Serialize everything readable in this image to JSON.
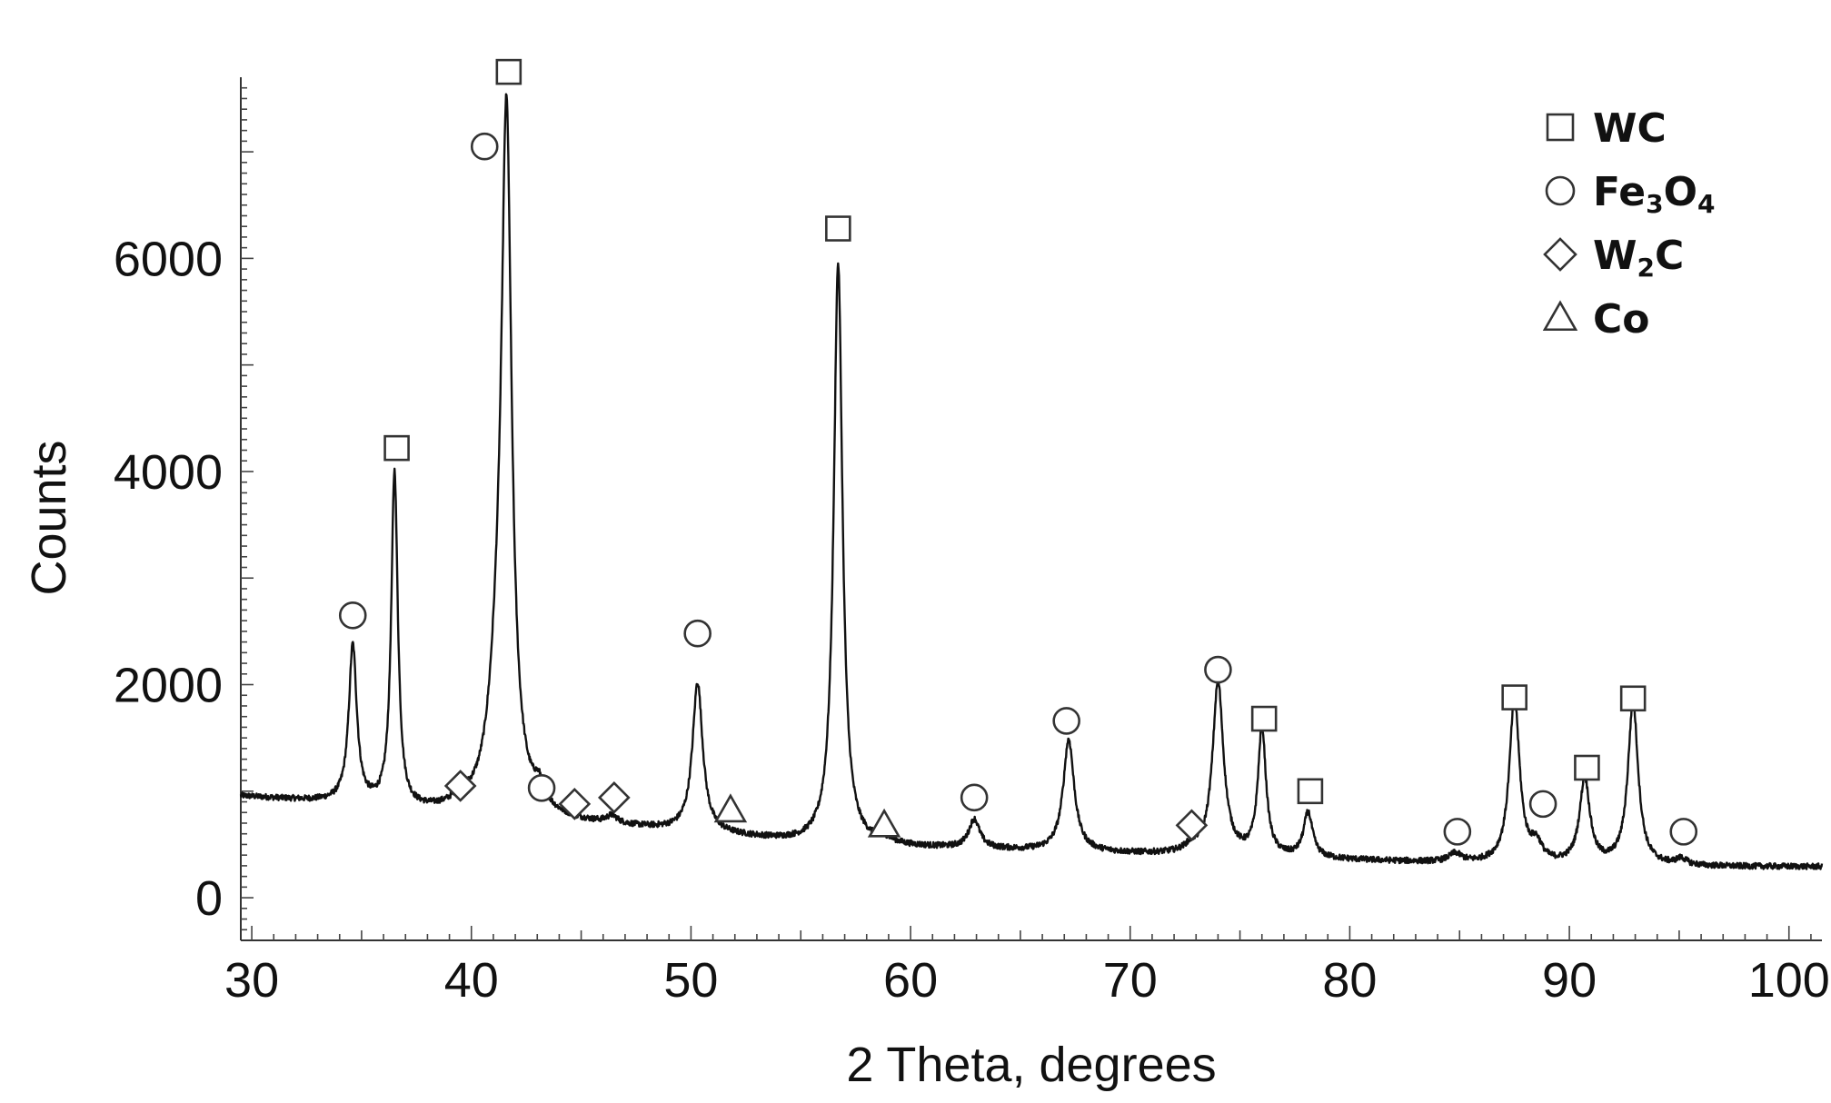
{
  "chart_data": {
    "type": "line",
    "xlabel": "2 Theta, degrees",
    "ylabel": "Counts",
    "xlim": [
      29.5,
      101.5
    ],
    "ylim": [
      -400,
      7700
    ],
    "x_ticks": [
      30,
      40,
      50,
      60,
      70,
      80,
      90,
      100
    ],
    "y_ticks": [
      0,
      2000,
      4000,
      6000
    ],
    "grid": false,
    "legend_position": "top-right",
    "background": {
      "points": [
        [
          29.5,
          950
        ],
        [
          34,
          880
        ],
        [
          37,
          800
        ],
        [
          40,
          790
        ],
        [
          45,
          690
        ],
        [
          50,
          610
        ],
        [
          55,
          510
        ],
        [
          60,
          470
        ],
        [
          65,
          440
        ],
        [
          70,
          410
        ],
        [
          75,
          380
        ],
        [
          80,
          350
        ],
        [
          85,
          320
        ],
        [
          90,
          300
        ],
        [
          95,
          290
        ],
        [
          101.5,
          290
        ]
      ]
    },
    "peaks": [
      {
        "x": 34.6,
        "height": 1480,
        "width": 0.22,
        "phase": "Fe3O4"
      },
      {
        "x": 36.5,
        "height": 3150,
        "width": 0.18,
        "phase": "WC"
      },
      {
        "x": 39.5,
        "height": 90,
        "width": 0.3,
        "phase": "W2C"
      },
      {
        "x": 41.2,
        "height": 900,
        "width": 0.5,
        "phase": "Fe3O4"
      },
      {
        "x": 41.6,
        "height": 6200,
        "width": 0.28,
        "phase": "WC"
      },
      {
        "x": 43.1,
        "height": 180,
        "width": 0.3,
        "phase": "Fe3O4"
      },
      {
        "x": 46.4,
        "height": 70,
        "width": 0.3,
        "phase": "W2C"
      },
      {
        "x": 50.3,
        "height": 1400,
        "width": 0.28,
        "phase": "Fe3O4"
      },
      {
        "x": 56.7,
        "height": 5450,
        "width": 0.24,
        "phase": "WC"
      },
      {
        "x": 58.9,
        "height": 40,
        "width": 0.4,
        "phase": "Co"
      },
      {
        "x": 62.9,
        "height": 270,
        "width": 0.3,
        "phase": "Fe3O4"
      },
      {
        "x": 67.2,
        "height": 1050,
        "width": 0.3,
        "phase": "Fe3O4"
      },
      {
        "x": 72.8,
        "height": 60,
        "width": 0.4,
        "phase": "W2C"
      },
      {
        "x": 74.0,
        "height": 1620,
        "width": 0.3,
        "phase": "Fe3O4"
      },
      {
        "x": 76.0,
        "height": 1200,
        "width": 0.22,
        "phase": "WC"
      },
      {
        "x": 78.1,
        "height": 420,
        "width": 0.25,
        "phase": "WC"
      },
      {
        "x": 84.8,
        "height": 80,
        "width": 0.35,
        "phase": "Fe3O4"
      },
      {
        "x": 87.5,
        "height": 1550,
        "width": 0.28,
        "phase": "WC"
      },
      {
        "x": 88.5,
        "height": 160,
        "width": 0.3,
        "phase": "Fe3O4"
      },
      {
        "x": 90.7,
        "height": 800,
        "width": 0.28,
        "phase": "WC"
      },
      {
        "x": 92.9,
        "height": 1530,
        "width": 0.28,
        "phase": "WC"
      },
      {
        "x": 95.1,
        "height": 60,
        "width": 0.3,
        "phase": "Fe3O4"
      }
    ],
    "markers": [
      {
        "x": 34.6,
        "y": 2650,
        "symbol": "circle"
      },
      {
        "x": 36.6,
        "y": 4220,
        "symbol": "square"
      },
      {
        "x": 39.5,
        "y": 1050,
        "symbol": "diamond"
      },
      {
        "x": 40.6,
        "y": 7050,
        "symbol": "circle"
      },
      {
        "x": 41.7,
        "y": 7750,
        "symbol": "square"
      },
      {
        "x": 43.2,
        "y": 1030,
        "symbol": "circle"
      },
      {
        "x": 44.7,
        "y": 880,
        "symbol": "diamond"
      },
      {
        "x": 46.5,
        "y": 940,
        "symbol": "diamond"
      },
      {
        "x": 50.3,
        "y": 2480,
        "symbol": "circle"
      },
      {
        "x": 51.8,
        "y": 820,
        "symbol": "triangle"
      },
      {
        "x": 56.7,
        "y": 6280,
        "symbol": "square"
      },
      {
        "x": 58.8,
        "y": 680,
        "symbol": "triangle"
      },
      {
        "x": 62.9,
        "y": 940,
        "symbol": "circle"
      },
      {
        "x": 67.1,
        "y": 1660,
        "symbol": "circle"
      },
      {
        "x": 72.8,
        "y": 680,
        "symbol": "diamond"
      },
      {
        "x": 74.0,
        "y": 2140,
        "symbol": "circle"
      },
      {
        "x": 76.1,
        "y": 1680,
        "symbol": "square"
      },
      {
        "x": 78.2,
        "y": 1000,
        "symbol": "square"
      },
      {
        "x": 84.9,
        "y": 620,
        "symbol": "circle"
      },
      {
        "x": 87.5,
        "y": 1880,
        "symbol": "square"
      },
      {
        "x": 88.8,
        "y": 880,
        "symbol": "circle"
      },
      {
        "x": 90.8,
        "y": 1220,
        "symbol": "square"
      },
      {
        "x": 92.9,
        "y": 1870,
        "symbol": "square"
      },
      {
        "x": 95.2,
        "y": 620,
        "symbol": "circle"
      }
    ],
    "legend": [
      {
        "symbol": "square",
        "main": "WC",
        "parts": [
          {
            "t": "WC",
            "sub": false
          }
        ]
      },
      {
        "symbol": "circle",
        "main": "Fe3O4",
        "parts": [
          {
            "t": "Fe",
            "sub": false
          },
          {
            "t": "3",
            "sub": true
          },
          {
            "t": "O",
            "sub": false
          },
          {
            "t": "4",
            "sub": true
          }
        ]
      },
      {
        "symbol": "diamond",
        "main": "W2C",
        "parts": [
          {
            "t": "W",
            "sub": false
          },
          {
            "t": "2",
            "sub": true
          },
          {
            "t": "C",
            "sub": false
          }
        ]
      },
      {
        "symbol": "triangle",
        "main": "Co",
        "parts": [
          {
            "t": "Co",
            "sub": false
          }
        ]
      }
    ]
  }
}
